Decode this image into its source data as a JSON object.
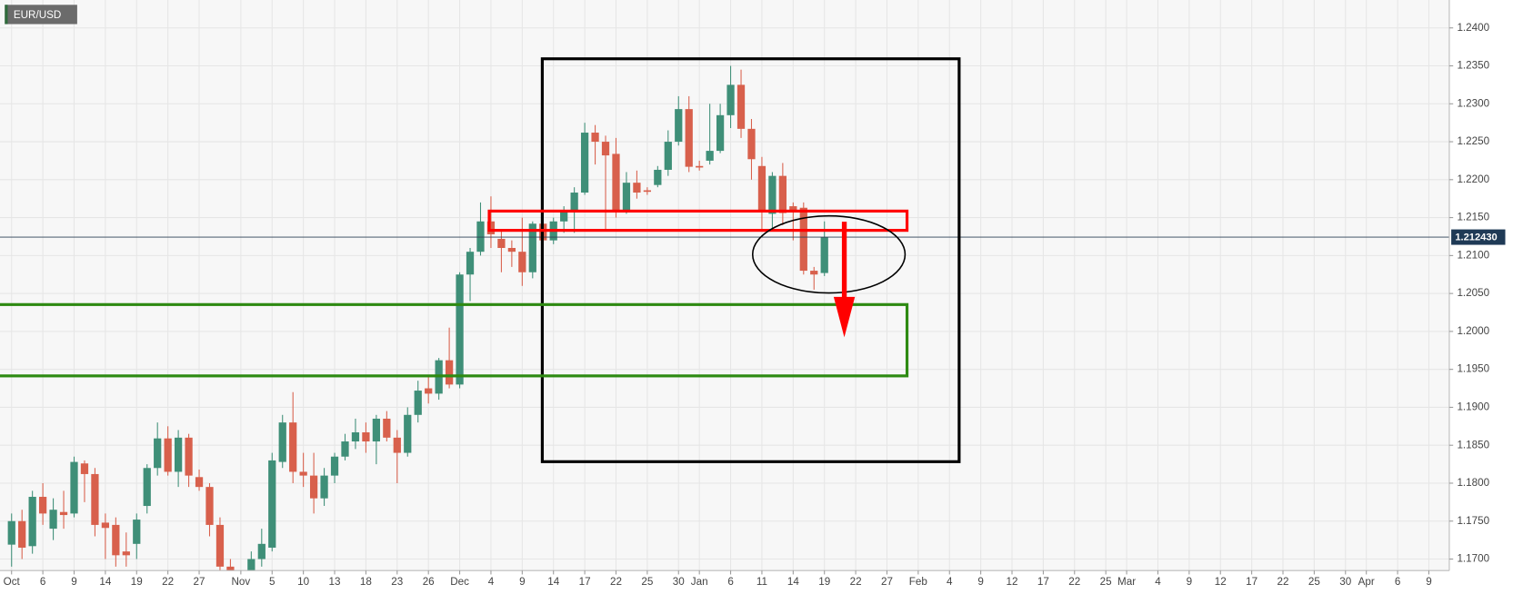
{
  "chart_data": {
    "type": "candlestick",
    "title": "EUR/USD",
    "categories": [
      "Oct",
      null,
      null,
      "6",
      null,
      null,
      "9",
      null,
      null,
      "14",
      null,
      null,
      "19",
      null,
      null,
      "22",
      null,
      null,
      "27",
      null,
      null,
      null,
      "Nov",
      null,
      null,
      "5",
      null,
      null,
      "10",
      null,
      null,
      "13",
      null,
      null,
      "18",
      null,
      null,
      "23",
      null,
      null,
      "26",
      null,
      null,
      "Dec",
      null,
      null,
      "4",
      null,
      null,
      "9",
      null,
      null,
      "14",
      null,
      null,
      "17",
      null,
      null,
      "22",
      null,
      null,
      "25",
      null,
      null,
      "30",
      null,
      "Jan",
      null,
      null,
      "6",
      null,
      null,
      "11",
      null,
      null,
      "14",
      null,
      null,
      "19",
      null,
      null,
      "22",
      null,
      null,
      "27",
      null,
      null,
      "Feb",
      null,
      null,
      "4",
      null,
      null,
      "9",
      null,
      null,
      "12",
      null,
      null,
      "17",
      null,
      null,
      "22",
      null,
      null,
      "25",
      null,
      "Mar",
      null,
      null,
      "4",
      null,
      null,
      "9",
      null,
      null,
      "12",
      null,
      null,
      "17",
      null,
      null,
      "22",
      null,
      null,
      "25",
      null,
      null,
      "30",
      null,
      "Apr",
      null,
      null,
      "6",
      null,
      null,
      "9"
    ],
    "open": [
      1.1719,
      1.175,
      1.1717,
      1.1782,
      1.174,
      1.1762,
      1.176,
      1.1826,
      1.1812,
      1.1748,
      1.1745,
      1.171,
      1.172,
      1.177,
      1.182,
      1.1859,
      1.1815,
      1.186,
      1.1808,
      1.1795,
      1.1745,
      1.169,
      1.165,
      1.164,
      1.17,
      1.1715,
      1.1828,
      1.188,
      1.1815,
      1.181,
      1.178,
      1.181,
      1.1835,
      1.1855,
      1.1867,
      1.1855,
      1.1885,
      1.186,
      1.184,
      1.189,
      1.1925,
      1.1918,
      1.1962,
      1.193,
      1.2075,
      1.2105,
      1.2145,
      1.2122,
      1.211,
      1.2105,
      1.2078,
      1.2142,
      1.212,
      1.2145,
      1.2157,
      1.2183,
      1.2262,
      1.225,
      1.2234,
      1.2158,
      1.2196,
      1.2186,
      1.2193,
      1.2213,
      1.225,
      1.2293,
      1.2218,
      1.2225,
      1.2238,
      1.2285,
      1.2325,
      1.2267,
      1.2218,
      1.2155,
      1.2205,
      1.2165,
      1.2163,
      1.208,
      1.2077,
      null,
      null,
      null,
      null,
      null,
      null,
      null,
      null,
      null,
      null,
      null,
      null,
      null,
      null,
      null,
      null,
      null,
      null,
      null,
      null,
      null,
      null,
      null,
      null,
      null,
      null,
      null,
      null,
      null,
      null,
      null,
      null,
      null,
      null,
      null,
      null,
      null,
      null,
      null,
      null,
      null,
      null,
      null,
      null,
      null,
      null,
      null,
      null,
      null,
      null,
      null,
      null,
      null,
      null,
      null,
      null,
      null,
      null
    ],
    "high": [
      1.176,
      1.1765,
      1.179,
      1.18,
      1.178,
      1.179,
      1.1835,
      1.183,
      1.182,
      1.176,
      1.1755,
      1.1735,
      1.176,
      1.1825,
      1.188,
      1.1875,
      1.187,
      1.1865,
      1.1818,
      1.18,
      1.1755,
      1.17,
      1.168,
      1.171,
      1.174,
      1.184,
      1.189,
      1.192,
      1.184,
      1.184,
      1.182,
      1.184,
      1.1865,
      1.1885,
      1.188,
      1.189,
      1.1895,
      1.187,
      1.19,
      1.1935,
      1.194,
      1.1965,
      1.2005,
      1.2078,
      1.211,
      1.217,
      1.2178,
      1.2135,
      1.212,
      1.215,
      1.2145,
      1.216,
      1.215,
      1.2165,
      1.219,
      1.2275,
      1.2272,
      1.2258,
      1.2255,
      1.221,
      1.2212,
      1.219,
      1.2218,
      1.2265,
      1.231,
      1.231,
      1.2225,
      1.23,
      1.23,
      1.235,
      1.2345,
      1.228,
      1.223,
      1.221,
      1.2222,
      1.217,
      1.217,
      1.2085,
      1.2145,
      null,
      null,
      null,
      null,
      null,
      null,
      null,
      null,
      null,
      null,
      null,
      null,
      null,
      null,
      null,
      null,
      null,
      null,
      null,
      null,
      null,
      null,
      null,
      null,
      null,
      null,
      null,
      null,
      null,
      null,
      null,
      null,
      null,
      null,
      null,
      null,
      null,
      null,
      null,
      null,
      null,
      null,
      null,
      null,
      null,
      null,
      null,
      null,
      null,
      null,
      null,
      null,
      null,
      null,
      null,
      null,
      null,
      null
    ],
    "low": [
      1.169,
      1.17,
      1.1707,
      1.1745,
      1.1725,
      1.174,
      1.1755,
      1.1775,
      1.173,
      1.17,
      1.169,
      1.169,
      1.17,
      1.176,
      1.181,
      1.181,
      1.1795,
      1.1795,
      1.179,
      1.173,
      1.167,
      1.164,
      1.162,
      1.163,
      1.169,
      1.171,
      1.182,
      1.18,
      1.1795,
      1.176,
      1.177,
      1.18,
      1.183,
      1.1845,
      1.184,
      1.1825,
      1.1855,
      1.18,
      1.1835,
      1.188,
      1.1905,
      1.191,
      1.1925,
      1.1925,
      1.204,
      1.21,
      1.211,
      1.2078,
      1.2085,
      1.206,
      1.207,
      1.2115,
      1.2115,
      1.213,
      1.213,
      1.218,
      1.222,
      1.2135,
      1.215,
      1.2155,
      1.2175,
      1.218,
      1.219,
      1.2205,
      1.2245,
      1.221,
      1.2212,
      1.222,
      1.2235,
      1.2268,
      1.2255,
      1.22,
      1.2133,
      1.2135,
      1.214,
      1.212,
      1.2075,
      1.2055,
      1.2073,
      null,
      null,
      null,
      null,
      null,
      null,
      null,
      null,
      null,
      null,
      null,
      null,
      null,
      null,
      null,
      null,
      null,
      null,
      null,
      null,
      null,
      null,
      null,
      null,
      null,
      null,
      null,
      null,
      null,
      null,
      null,
      null,
      null,
      null,
      null,
      null,
      null,
      null,
      null,
      null,
      null,
      null,
      null,
      null,
      null,
      null,
      null,
      null,
      null,
      null,
      null,
      null,
      null,
      null,
      null,
      null,
      null,
      null
    ],
    "close": [
      1.175,
      1.1715,
      1.1782,
      1.176,
      1.1765,
      1.1758,
      1.1828,
      1.1812,
      1.1745,
      1.1741,
      1.1705,
      1.1705,
      1.1752,
      1.182,
      1.1859,
      1.1815,
      1.186,
      1.181,
      1.1795,
      1.1745,
      1.169,
      1.165,
      1.164,
      1.17,
      1.172,
      1.183,
      1.188,
      1.1815,
      1.181,
      1.178,
      1.181,
      1.1835,
      1.1855,
      1.1867,
      1.1855,
      1.1885,
      1.186,
      1.184,
      1.189,
      1.1922,
      1.1918,
      1.1962,
      1.193,
      1.2075,
      1.2105,
      1.2145,
      1.2128,
      1.211,
      1.2105,
      1.2078,
      1.2142,
      1.212,
      1.2145,
      1.2157,
      1.2183,
      1.2262,
      1.225,
      1.2232,
      1.2158,
      1.2196,
      1.2183,
      1.2184,
      1.2213,
      1.225,
      1.2293,
      1.2217,
      1.2216,
      1.2238,
      1.2285,
      1.2325,
      1.2267,
      1.2227,
      1.2157,
      1.2205,
      1.2156,
      1.2158,
      1.208,
      1.2075,
      1.2124,
      null,
      null,
      null,
      null,
      null,
      null,
      null,
      null,
      null,
      null,
      null,
      null,
      null,
      null,
      null,
      null,
      null,
      null,
      null,
      null,
      null,
      null,
      null,
      null,
      null,
      null,
      null,
      null,
      null,
      null,
      null,
      null,
      null,
      null,
      null,
      null,
      null,
      null,
      null,
      null,
      null,
      null,
      null,
      null,
      null,
      null,
      null,
      null,
      null,
      null,
      null,
      null,
      null,
      null,
      null,
      null,
      null,
      null
    ],
    "up_color": "#3f8f78",
    "down_color": "#d8604c",
    "ylim": [
      1.16848,
      1.24368
    ],
    "yticks": [
      {
        "value": 1.17,
        "label": "1.1700"
      },
      {
        "value": 1.175,
        "label": "1.1750"
      },
      {
        "value": 1.18,
        "label": "1.1800"
      },
      {
        "value": 1.185,
        "label": "1.1850"
      },
      {
        "value": 1.19,
        "label": "1.1900"
      },
      {
        "value": 1.195,
        "label": "1.1950"
      },
      {
        "value": 1.2,
        "label": "1.2000"
      },
      {
        "value": 1.205,
        "label": "1.2050"
      },
      {
        "value": 1.21,
        "label": "1.2100"
      },
      {
        "value": 1.215,
        "label": "1.2150"
      },
      {
        "value": 1.22,
        "label": "1.2200"
      },
      {
        "value": 1.225,
        "label": "1.2250"
      },
      {
        "value": 1.23,
        "label": "1.2300"
      },
      {
        "value": 1.235,
        "label": "1.2350"
      },
      {
        "value": 1.24,
        "label": "1.2400"
      }
    ],
    "last_price": {
      "value": 1.21243,
      "label": "1.212430"
    },
    "grid": true
  }
}
